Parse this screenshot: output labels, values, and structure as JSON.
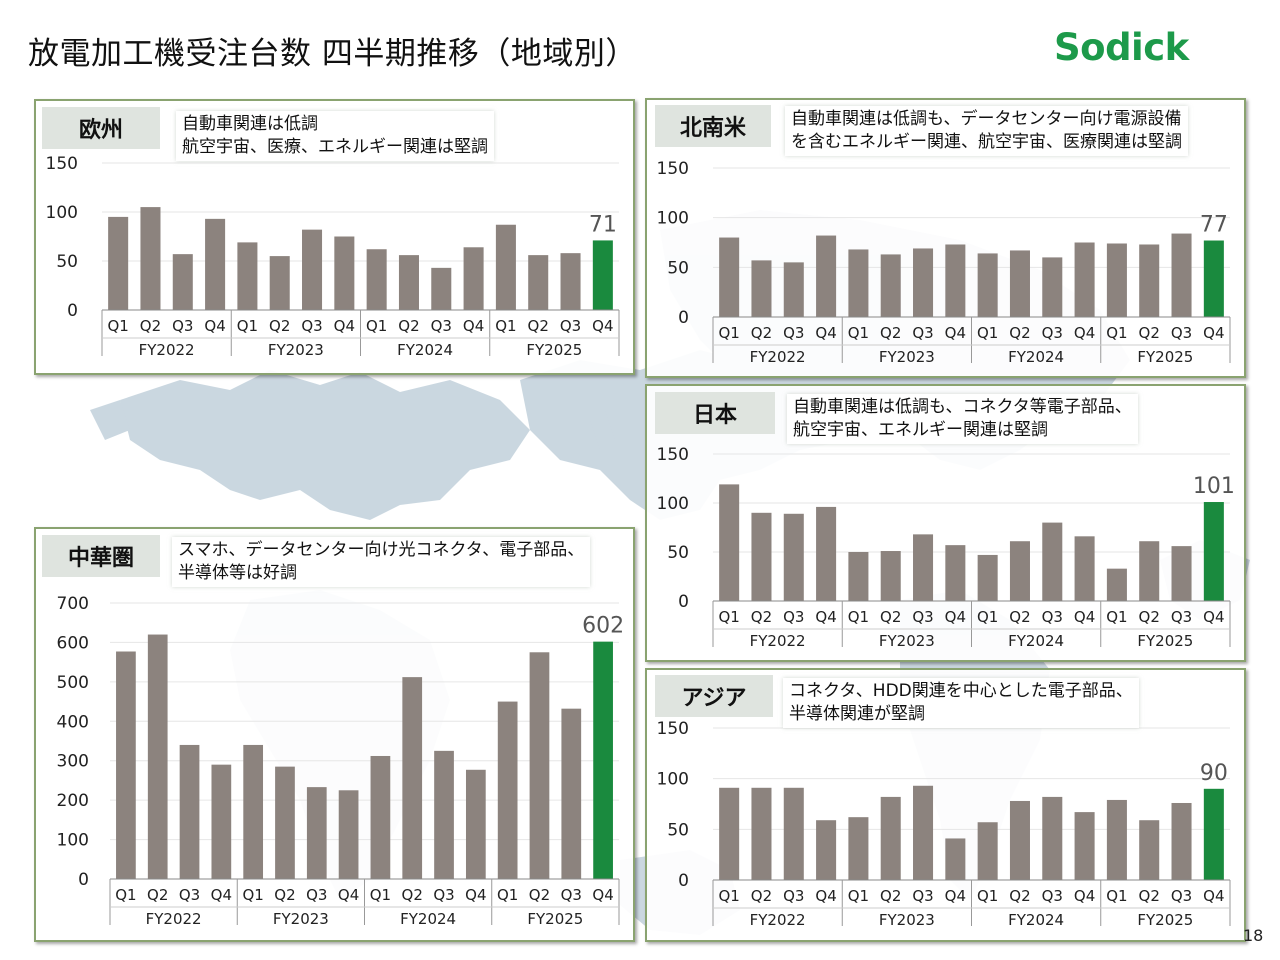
{
  "page": {
    "title": "放電加工機受注台数 四半期推移（地域別）",
    "logo": "Sodick",
    "page_number": "18"
  },
  "colors": {
    "bar": "#8c837e",
    "highlight": "#1a8a3e",
    "panel_border": "#8aa370",
    "logo": "#1d9a4a",
    "map": "#b9cad6"
  },
  "panels": {
    "europe": {
      "label": "欧州",
      "note": [
        "自動車関連は低調",
        "航空宇宙、医療、エネルギー関連は堅調"
      ]
    },
    "northamerica": {
      "label": "北南米",
      "note": [
        "自動車関連は低調も、データセンター向け電源設備",
        "を含むエネルギー関連、航空宇宙、医療関連は堅調"
      ]
    },
    "japan": {
      "label": "日本",
      "note": [
        "自動車関連は低調も、コネクタ等電子部品、",
        "航空宇宙、エネルギー関連は堅調"
      ]
    },
    "china": {
      "label": "中華圏",
      "note": [
        "スマホ、データセンター向け光コネクタ、電子部品、",
        "半導体等は好調"
      ]
    },
    "asia": {
      "label": "アジア",
      "note": [
        "コネクタ、HDD関連を中心とした電子部品、",
        "半導体関連が堅調"
      ]
    }
  },
  "chart_data": [
    {
      "id": "europe",
      "type": "bar",
      "title": "欧州",
      "categories": [
        "Q1",
        "Q2",
        "Q3",
        "Q4",
        "Q1",
        "Q2",
        "Q3",
        "Q4",
        "Q1",
        "Q2",
        "Q3",
        "Q4",
        "Q1",
        "Q2",
        "Q3",
        "Q4"
      ],
      "groups": [
        "FY2022",
        "FY2023",
        "FY2024",
        "FY2025"
      ],
      "values": [
        95,
        105,
        57,
        93,
        69,
        55,
        82,
        75,
        62,
        56,
        43,
        64,
        87,
        56,
        58,
        71
      ],
      "highlight_index": 15,
      "highlight_label": "71",
      "ylim": [
        0,
        150
      ],
      "yticks": [
        0,
        50,
        100,
        150
      ]
    },
    {
      "id": "northamerica",
      "type": "bar",
      "title": "北南米",
      "categories": [
        "Q1",
        "Q2",
        "Q3",
        "Q4",
        "Q1",
        "Q2",
        "Q3",
        "Q4",
        "Q1",
        "Q2",
        "Q3",
        "Q4",
        "Q1",
        "Q2",
        "Q3",
        "Q4"
      ],
      "groups": [
        "FY2022",
        "FY2023",
        "FY2024",
        "FY2025"
      ],
      "values": [
        80,
        57,
        55,
        82,
        68,
        63,
        69,
        73,
        64,
        67,
        60,
        75,
        74,
        73,
        84,
        77
      ],
      "highlight_index": 15,
      "highlight_label": "77",
      "ylim": [
        0,
        150
      ],
      "yticks": [
        0,
        50,
        100,
        150
      ]
    },
    {
      "id": "japan",
      "type": "bar",
      "title": "日本",
      "categories": [
        "Q1",
        "Q2",
        "Q3",
        "Q4",
        "Q1",
        "Q2",
        "Q3",
        "Q4",
        "Q1",
        "Q2",
        "Q3",
        "Q4",
        "Q1",
        "Q2",
        "Q3",
        "Q4"
      ],
      "groups": [
        "FY2022",
        "FY2023",
        "FY2024",
        "FY2025"
      ],
      "values": [
        119,
        90,
        89,
        96,
        50,
        51,
        68,
        57,
        47,
        61,
        80,
        66,
        33,
        61,
        56,
        101
      ],
      "highlight_index": 15,
      "highlight_label": "101",
      "ylim": [
        0,
        150
      ],
      "yticks": [
        0,
        50,
        100,
        150
      ]
    },
    {
      "id": "china",
      "type": "bar",
      "title": "中華圏",
      "categories": [
        "Q1",
        "Q2",
        "Q3",
        "Q4",
        "Q1",
        "Q2",
        "Q3",
        "Q4",
        "Q1",
        "Q2",
        "Q3",
        "Q4",
        "Q1",
        "Q2",
        "Q3",
        "Q4"
      ],
      "groups": [
        "FY2022",
        "FY2023",
        "FY2024",
        "FY2025"
      ],
      "values": [
        577,
        620,
        340,
        290,
        340,
        285,
        233,
        225,
        312,
        512,
        325,
        277,
        450,
        575,
        432,
        602
      ],
      "highlight_index": 15,
      "highlight_label": "602",
      "ylim": [
        0,
        700
      ],
      "yticks": [
        0,
        100,
        200,
        300,
        400,
        500,
        600,
        700
      ]
    },
    {
      "id": "asia",
      "type": "bar",
      "title": "アジア",
      "categories": [
        "Q1",
        "Q2",
        "Q3",
        "Q4",
        "Q1",
        "Q2",
        "Q3",
        "Q4",
        "Q1",
        "Q2",
        "Q3",
        "Q4",
        "Q1",
        "Q2",
        "Q3",
        "Q4"
      ],
      "groups": [
        "FY2022",
        "FY2023",
        "FY2024",
        "FY2025"
      ],
      "values": [
        91,
        91,
        91,
        59,
        62,
        82,
        93,
        41,
        57,
        78,
        82,
        67,
        79,
        59,
        76,
        90
      ],
      "highlight_index": 15,
      "highlight_label": "90",
      "ylim": [
        0,
        150
      ],
      "yticks": [
        0,
        50,
        100,
        150
      ]
    }
  ]
}
